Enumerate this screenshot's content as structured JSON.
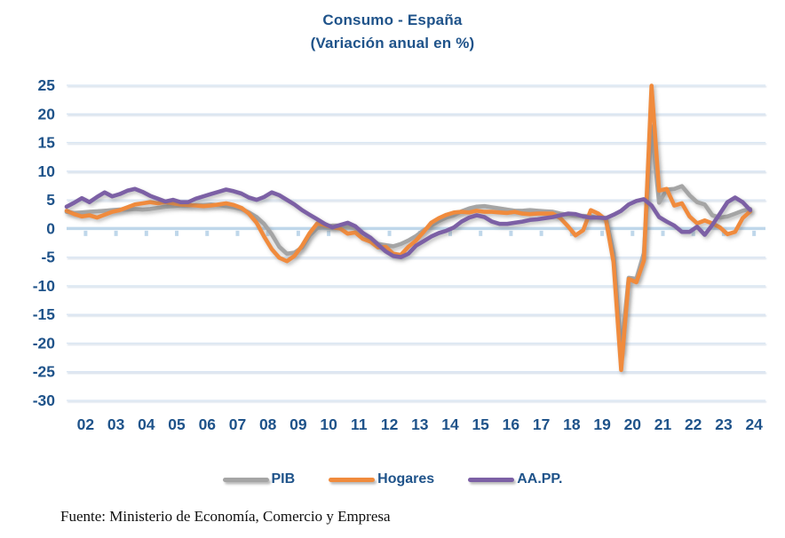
{
  "header": {
    "title": "Consumo - España",
    "subtitle": "(Variación anual en %)"
  },
  "source_note": "Fuente: Ministerio de Economía, Comercio y Empresa",
  "colors": {
    "title_text": "#1F538A",
    "axis_text": "#1F538A",
    "gridline": "#D9E5F2",
    "zero_axis": "#BFD7EA",
    "pib": "#A5A5A5",
    "hogares": "#F08B3D",
    "aapp": "#7C60A5"
  },
  "chart_data": {
    "type": "line",
    "title": "Consumo - España",
    "subtitle": "(Variación anual en %)",
    "x_unit": "quarterly",
    "x_start": "2002Q1",
    "x_end": "2024Q3",
    "x_tick_labels": [
      "02",
      "03",
      "04",
      "05",
      "06",
      "07",
      "08",
      "09",
      "10",
      "11",
      "12",
      "13",
      "14",
      "15",
      "16",
      "17",
      "18",
      "19",
      "20",
      "21",
      "22",
      "23",
      "24"
    ],
    "y_tick_labels": [
      "25",
      "20",
      "15",
      "10",
      "5",
      "0",
      "-5",
      "-10",
      "-15",
      "-20",
      "-25",
      "-30"
    ],
    "ylim": [
      -30,
      25
    ],
    "y_tick_step": 5,
    "grid": "horizontal-only",
    "legend_position": "bottom",
    "series": [
      {
        "name": "PIB",
        "color": "#A5A5A5",
        "values": [
          2.9,
          2.7,
          2.8,
          2.9,
          3.0,
          3.1,
          3.2,
          3.3,
          3.3,
          3.4,
          3.3,
          3.4,
          3.6,
          3.8,
          3.9,
          4.0,
          4.0,
          4.1,
          4.1,
          4.2,
          4.1,
          3.9,
          3.7,
          3.4,
          2.8,
          2.0,
          0.8,
          -1.0,
          -3.2,
          -4.4,
          -4.2,
          -3.3,
          -1.2,
          0.1,
          0.3,
          0.5,
          0.5,
          0.3,
          0.0,
          -0.8,
          -1.8,
          -2.7,
          -2.9,
          -3.1,
          -2.7,
          -2.1,
          -1.3,
          -0.3,
          0.5,
          1.3,
          1.9,
          2.3,
          3.0,
          3.5,
          3.8,
          3.9,
          3.7,
          3.5,
          3.3,
          3.1,
          3.1,
          3.2,
          3.1,
          3.0,
          2.9,
          2.6,
          2.4,
          2.2,
          2.2,
          2.1,
          1.9,
          1.8,
          -4.3,
          -21.7,
          -8.6,
          -8.8,
          -4.3,
          17.8,
          4.5,
          6.8,
          6.9,
          7.4,
          5.8,
          4.6,
          4.2,
          2.3,
          1.9,
          2.1,
          2.6,
          3.1,
          3.4
        ]
      },
      {
        "name": "Hogares",
        "color": "#F08B3D",
        "values": [
          3.1,
          2.5,
          2.1,
          2.3,
          1.9,
          2.4,
          2.9,
          3.2,
          3.7,
          4.2,
          4.4,
          4.6,
          4.4,
          4.6,
          4.4,
          4.2,
          4.1,
          4.0,
          3.9,
          4.0,
          4.2,
          4.4,
          4.1,
          3.6,
          2.6,
          1.0,
          -1.4,
          -3.6,
          -5.1,
          -5.7,
          -4.8,
          -3.0,
          -0.8,
          0.9,
          0.6,
          0.2,
          0.0,
          -0.9,
          -0.7,
          -1.8,
          -2.3,
          -3.3,
          -3.2,
          -4.4,
          -4.6,
          -3.2,
          -2.1,
          -0.6,
          1.0,
          1.8,
          2.4,
          2.8,
          2.9,
          2.8,
          3.1,
          2.9,
          2.9,
          2.8,
          2.7,
          2.9,
          2.6,
          2.5,
          2.6,
          2.6,
          2.6,
          1.8,
          0.4,
          -1.2,
          -0.3,
          3.2,
          2.6,
          1.5,
          -5.9,
          -24.7,
          -8.8,
          -9.4,
          -5.6,
          24.9,
          6.6,
          6.9,
          4.0,
          4.4,
          2.1,
          0.9,
          1.4,
          0.9,
          0.2,
          -1.0,
          -0.6,
          1.8,
          3.0
        ]
      },
      {
        "name": "AA.PP.",
        "color": "#7C60A5",
        "values": [
          3.8,
          4.5,
          5.3,
          4.6,
          5.5,
          6.3,
          5.6,
          6.0,
          6.6,
          6.9,
          6.4,
          5.7,
          5.2,
          4.7,
          5.0,
          4.6,
          4.6,
          5.2,
          5.6,
          6.0,
          6.4,
          6.8,
          6.5,
          6.1,
          5.4,
          5.0,
          5.5,
          6.3,
          5.8,
          5.0,
          4.2,
          3.2,
          2.4,
          1.6,
          0.8,
          0.2,
          0.6,
          1.0,
          0.4,
          -0.8,
          -1.6,
          -2.8,
          -4.0,
          -4.8,
          -5.0,
          -4.4,
          -3.0,
          -2.2,
          -1.4,
          -0.8,
          -0.4,
          0.2,
          1.2,
          1.9,
          2.3,
          2.0,
          1.2,
          0.8,
          0.8,
          1.0,
          1.2,
          1.5,
          1.6,
          1.8,
          2.0,
          2.3,
          2.6,
          2.5,
          2.1,
          1.9,
          1.9,
          1.8,
          2.4,
          3.1,
          4.2,
          4.8,
          5.1,
          4.0,
          2.0,
          1.2,
          0.5,
          -0.6,
          -0.6,
          0.3,
          -1.1,
          0.6,
          2.6,
          4.6,
          5.4,
          4.6,
          3.2
        ]
      }
    ]
  }
}
